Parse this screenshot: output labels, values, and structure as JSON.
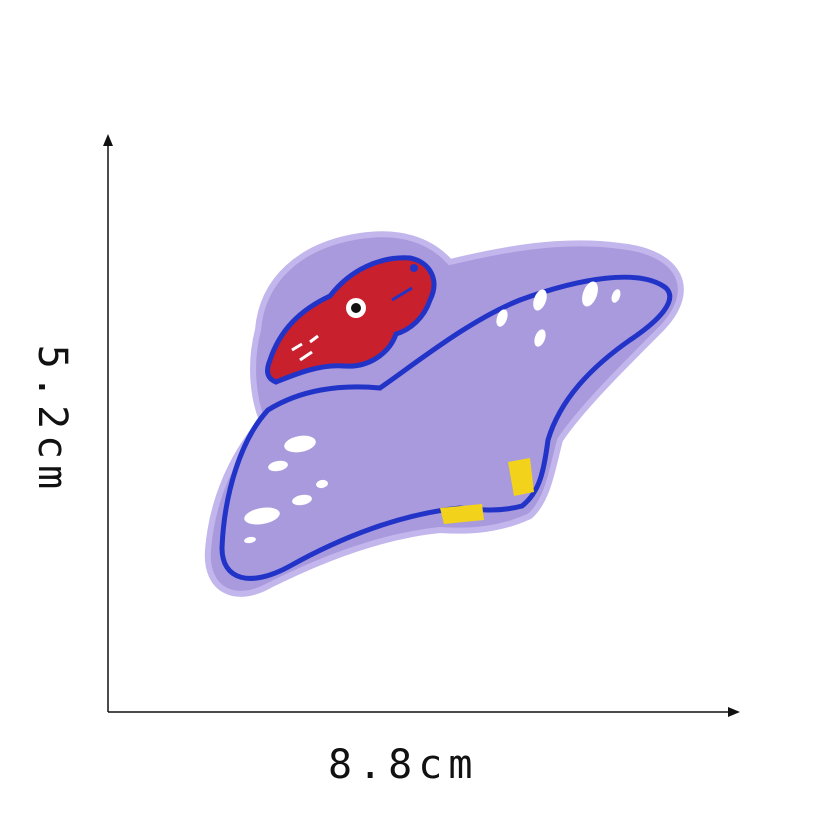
{
  "dimensions": {
    "width_label": "8.8cm",
    "height_label": "5.2cm"
  },
  "patch": {
    "subject": "pterodactyl-embroidered-patch",
    "colors": {
      "felt": "#a99add",
      "felt_edge": "#c2b6ec",
      "outline": "#2234c8",
      "body": "#a99add",
      "head": "#c8202c",
      "spots": "#ffffff",
      "feet": "#f2d21a"
    }
  },
  "axes_color": "#111111"
}
